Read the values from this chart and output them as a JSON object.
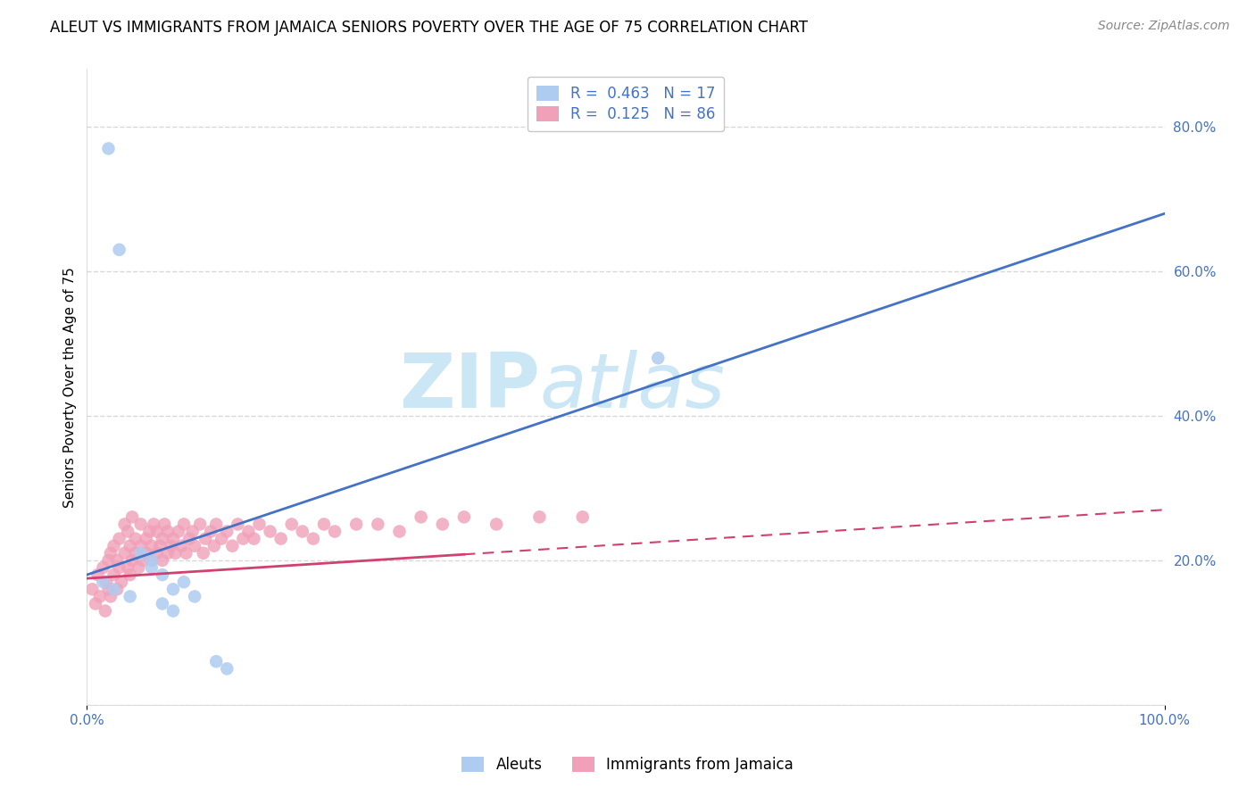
{
  "title": "ALEUT VS IMMIGRANTS FROM JAMAICA SENIORS POVERTY OVER THE AGE OF 75 CORRELATION CHART",
  "source": "Source: ZipAtlas.com",
  "xlabel": "",
  "ylabel": "Seniors Poverty Over the Age of 75",
  "xlim": [
    0,
    1.0
  ],
  "ylim": [
    0,
    0.88
  ],
  "yticks": [
    0.0,
    0.2,
    0.4,
    0.6,
    0.8
  ],
  "ytick_labels": [
    "",
    "20.0%",
    "40.0%",
    "60.0%",
    "80.0%"
  ],
  "xticks": [
    0.0,
    1.0
  ],
  "xtick_labels": [
    "0.0%",
    "100.0%"
  ],
  "aleut_R": 0.463,
  "aleut_N": 17,
  "jamaica_R": 0.125,
  "jamaica_N": 86,
  "aleut_color": "#aeccf0",
  "aleut_line_color": "#4472c4",
  "jamaica_color": "#f0a0b8",
  "jamaica_line_color": "#d04070",
  "aleut_line_x0": 0.0,
  "aleut_line_y0": 0.18,
  "aleut_line_x1": 1.0,
  "aleut_line_y1": 0.68,
  "jamaica_line_x0": 0.0,
  "jamaica_line_y0": 0.175,
  "jamaica_line_x1": 1.0,
  "jamaica_line_y1": 0.27,
  "aleut_scatter_x": [
    0.02,
    0.03,
    0.05,
    0.06,
    0.06,
    0.07,
    0.08,
    0.09,
    0.1,
    0.13,
    0.53,
    0.015,
    0.025,
    0.04,
    0.07,
    0.08,
    0.12
  ],
  "aleut_scatter_y": [
    0.77,
    0.63,
    0.21,
    0.19,
    0.2,
    0.18,
    0.16,
    0.17,
    0.15,
    0.05,
    0.48,
    0.17,
    0.16,
    0.15,
    0.14,
    0.13,
    0.06
  ],
  "jamaica_scatter_x": [
    0.005,
    0.008,
    0.01,
    0.012,
    0.015,
    0.017,
    0.018,
    0.02,
    0.02,
    0.022,
    0.022,
    0.025,
    0.025,
    0.028,
    0.028,
    0.03,
    0.03,
    0.032,
    0.035,
    0.035,
    0.038,
    0.038,
    0.04,
    0.04,
    0.042,
    0.042,
    0.045,
    0.045,
    0.048,
    0.05,
    0.05,
    0.052,
    0.055,
    0.055,
    0.058,
    0.06,
    0.06,
    0.062,
    0.065,
    0.065,
    0.068,
    0.07,
    0.07,
    0.072,
    0.075,
    0.075,
    0.078,
    0.08,
    0.082,
    0.085,
    0.088,
    0.09,
    0.092,
    0.095,
    0.098,
    0.1,
    0.105,
    0.108,
    0.11,
    0.115,
    0.118,
    0.12,
    0.125,
    0.13,
    0.135,
    0.14,
    0.145,
    0.15,
    0.155,
    0.16,
    0.17,
    0.18,
    0.19,
    0.2,
    0.21,
    0.22,
    0.23,
    0.25,
    0.27,
    0.29,
    0.31,
    0.33,
    0.35,
    0.38,
    0.42,
    0.46
  ],
  "jamaica_scatter_y": [
    0.16,
    0.14,
    0.18,
    0.15,
    0.19,
    0.13,
    0.17,
    0.2,
    0.16,
    0.21,
    0.15,
    0.18,
    0.22,
    0.16,
    0.2,
    0.19,
    0.23,
    0.17,
    0.21,
    0.25,
    0.19,
    0.24,
    0.18,
    0.22,
    0.2,
    0.26,
    0.21,
    0.23,
    0.19,
    0.22,
    0.25,
    0.2,
    0.23,
    0.21,
    0.24,
    0.2,
    0.22,
    0.25,
    0.21,
    0.24,
    0.22,
    0.2,
    0.23,
    0.25,
    0.21,
    0.24,
    0.22,
    0.23,
    0.21,
    0.24,
    0.22,
    0.25,
    0.21,
    0.23,
    0.24,
    0.22,
    0.25,
    0.21,
    0.23,
    0.24,
    0.22,
    0.25,
    0.23,
    0.24,
    0.22,
    0.25,
    0.23,
    0.24,
    0.23,
    0.25,
    0.24,
    0.23,
    0.25,
    0.24,
    0.23,
    0.25,
    0.24,
    0.25,
    0.25,
    0.24,
    0.26,
    0.25,
    0.26,
    0.25,
    0.26,
    0.26
  ],
  "watermark_part1": "ZIP",
  "watermark_part2": "atlas",
  "watermark_color1": "#8cc8e8",
  "watermark_color2": "#8cc8e8",
  "legend_box_color": "#ffffff",
  "legend_border_color": "#c8c8c8",
  "grid_color": "#d8d8d8",
  "background_color": "#ffffff",
  "title_fontsize": 12,
  "axis_label_fontsize": 11,
  "tick_fontsize": 11,
  "legend_fontsize": 12,
  "source_fontsize": 10
}
